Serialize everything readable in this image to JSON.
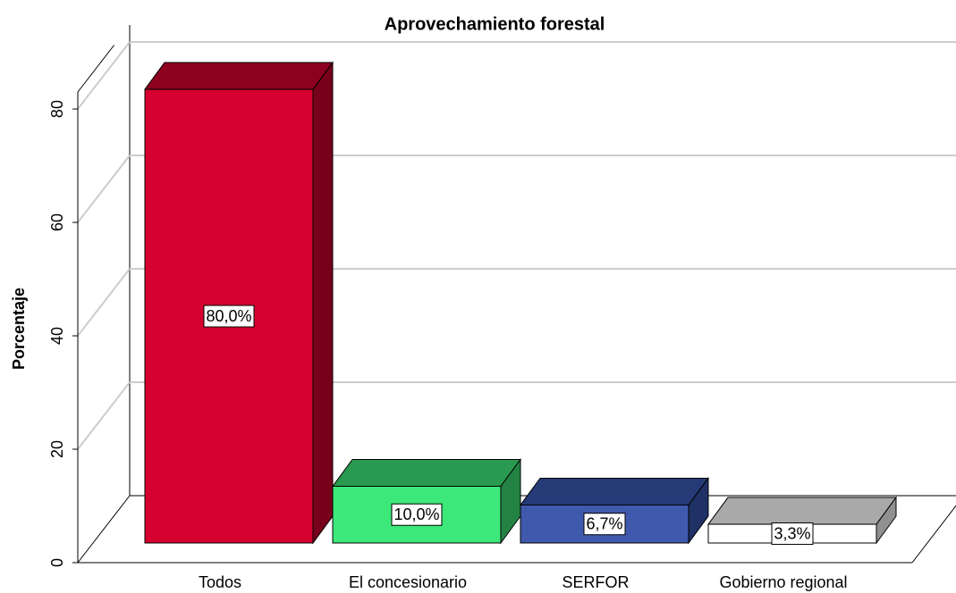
{
  "chart_data": {
    "type": "bar3d",
    "title": "Aprovechamiento forestal",
    "y_label": "Porcentaje",
    "categories": [
      "Todos",
      "El concesionario",
      "SERFOR",
      "Gobierno regional"
    ],
    "values": [
      80.0,
      10.0,
      6.7,
      3.3
    ],
    "value_labels": [
      "80,0%",
      "10,0%",
      "6,7%",
      "3,3%"
    ],
    "colors": [
      "#d5002f",
      "#3de87a",
      "#3f5aad",
      "#ffffff"
    ],
    "side_colors": [
      "#8c0020",
      "#2a9a50",
      "#263a78",
      "#a9a9a9"
    ],
    "ylim": [
      0,
      83
    ],
    "yticks": [
      0,
      20,
      40,
      60,
      80
    ],
    "grid": true
  }
}
